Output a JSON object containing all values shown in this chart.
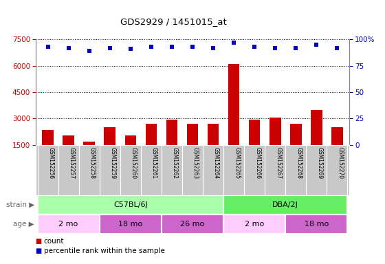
{
  "title": "GDS2929 / 1451015_at",
  "samples": [
    "GSM152256",
    "GSM152257",
    "GSM152258",
    "GSM152259",
    "GSM152260",
    "GSM152261",
    "GSM152262",
    "GSM152263",
    "GSM152264",
    "GSM152265",
    "GSM152266",
    "GSM152267",
    "GSM152268",
    "GSM152269",
    "GSM152270"
  ],
  "counts": [
    2350,
    2050,
    1700,
    2500,
    2050,
    2700,
    2950,
    2700,
    2700,
    6100,
    2950,
    3050,
    2700,
    3500,
    2500
  ],
  "percentile_ranks": [
    93,
    92,
    89,
    92,
    91,
    93,
    93,
    93,
    92,
    97,
    93,
    92,
    92,
    95,
    92
  ],
  "ylim_left": [
    1500,
    7500
  ],
  "ylim_right": [
    0,
    100
  ],
  "yticks_left": [
    1500,
    3000,
    4500,
    6000,
    7500
  ],
  "yticks_right": [
    0,
    25,
    50,
    75,
    100
  ],
  "bar_color": "#cc0000",
  "dot_color": "#0000cc",
  "strain_groups": [
    {
      "label": "C57BL/6J",
      "start": 0,
      "end": 9,
      "color": "#aaffaa"
    },
    {
      "label": "DBA/2J",
      "start": 9,
      "end": 15,
      "color": "#66ee66"
    }
  ],
  "age_groups": [
    {
      "label": "2 mo",
      "start": 0,
      "end": 3,
      "color": "#ffccff"
    },
    {
      "label": "18 mo",
      "start": 3,
      "end": 6,
      "color": "#dd77dd"
    },
    {
      "label": "26 mo",
      "start": 6,
      "end": 9,
      "color": "#dd77dd"
    },
    {
      "label": "2 mo",
      "start": 9,
      "end": 12,
      "color": "#ffccff"
    },
    {
      "label": "18 mo",
      "start": 12,
      "end": 15,
      "color": "#dd77dd"
    }
  ],
  "plot_bg": "#ffffff",
  "label_color_left": "#cc0000",
  "label_color_right": "#0000cc",
  "sample_bg": "#c8c8c8",
  "strain_label_color": "#666666",
  "age_label_color": "#666666"
}
